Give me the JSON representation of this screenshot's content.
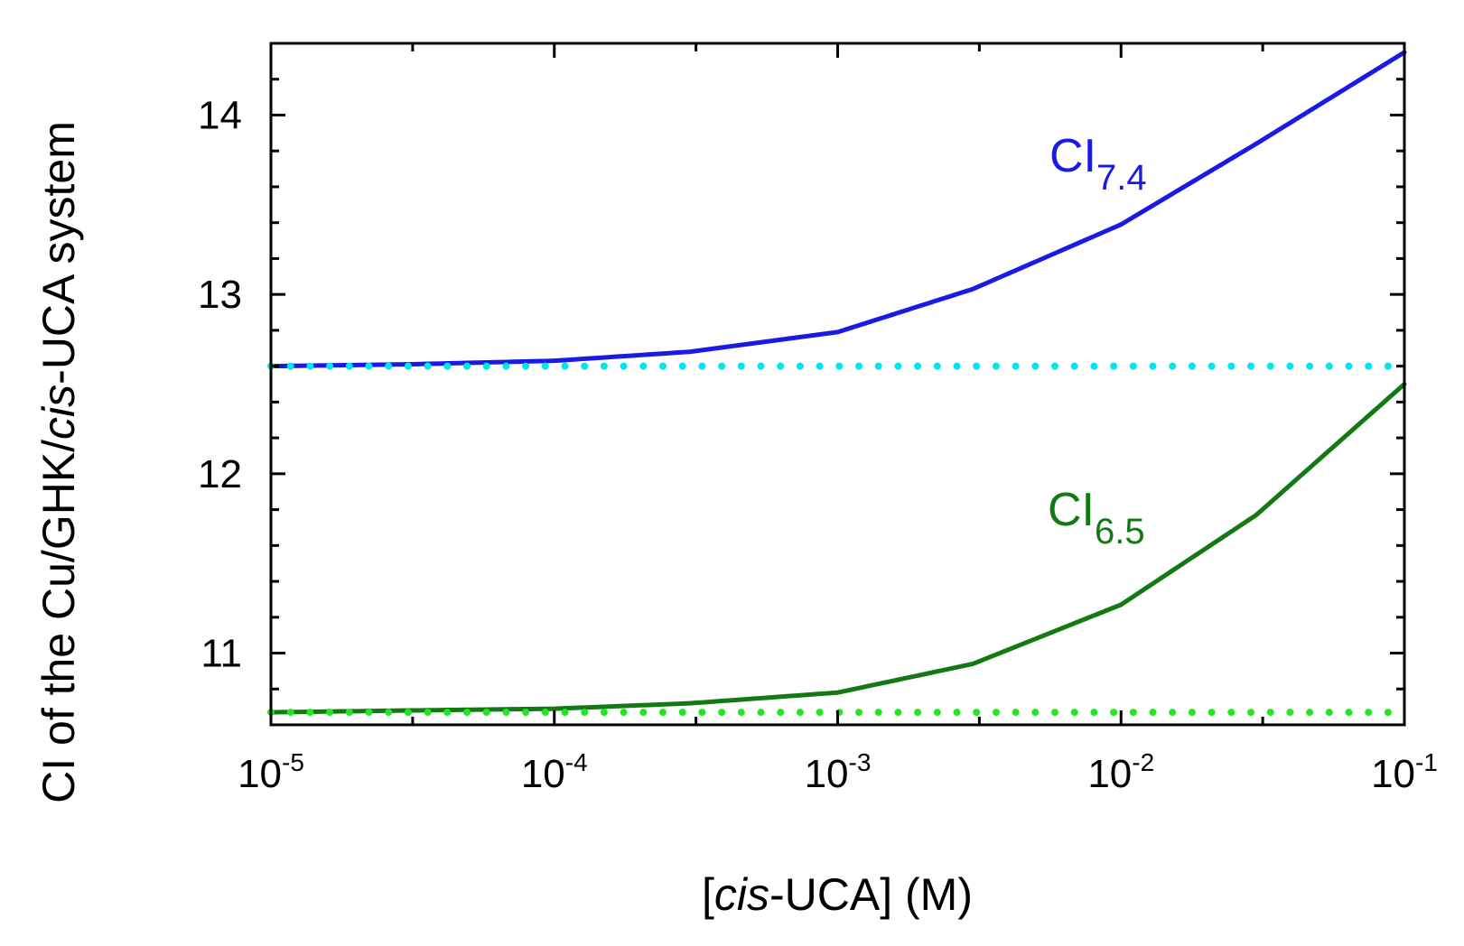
{
  "chart_data": {
    "type": "line",
    "title": "",
    "xlabel": {
      "prefix": "[",
      "italic": "cis",
      "suffix": "-UCA] (M)"
    },
    "ylabel": {
      "prefix": "CI of the Cu/GHK/",
      "italic": "cis",
      "suffix": "-UCA system"
    },
    "xscale": "log",
    "xlim": [
      1e-05,
      0.1
    ],
    "ylim": [
      10.6,
      14.4
    ],
    "x_ticks": [
      {
        "value": 1e-05,
        "base": "10",
        "exp": "-5"
      },
      {
        "value": 0.0001,
        "base": "10",
        "exp": "-4"
      },
      {
        "value": 0.001,
        "base": "10",
        "exp": "-3"
      },
      {
        "value": 0.01,
        "base": "10",
        "exp": "-2"
      },
      {
        "value": 0.1,
        "base": "10",
        "exp": "-1"
      }
    ],
    "y_ticks": [
      {
        "value": 11,
        "label": "11"
      },
      {
        "value": 12,
        "label": "12"
      },
      {
        "value": 13,
        "label": "13"
      },
      {
        "value": 14,
        "label": "14"
      }
    ],
    "y_minor_step": 0.2,
    "series": [
      {
        "name": "CI7.4",
        "label_main": "CI",
        "label_sub": "7.4",
        "color": "#1a1ae6",
        "style": "solid",
        "x": [
          1e-05,
          3e-05,
          0.0001,
          0.0003,
          0.001,
          0.003,
          0.01,
          0.03,
          0.1
        ],
        "values": [
          12.6,
          12.61,
          12.63,
          12.68,
          12.79,
          13.03,
          13.39,
          13.84,
          14.35
        ]
      },
      {
        "name": "CI7.4 baseline",
        "color": "#00e5f0",
        "style": "dotted",
        "x": [
          1e-05,
          0.1
        ],
        "values": [
          12.6,
          12.6
        ]
      },
      {
        "name": "CI6.5",
        "label_main": "CI",
        "label_sub": "6.5",
        "color": "#137a13",
        "style": "solid",
        "x": [
          1e-05,
          3e-05,
          0.0001,
          0.0003,
          0.001,
          0.003,
          0.01,
          0.03,
          0.1
        ],
        "values": [
          10.67,
          10.68,
          10.69,
          10.72,
          10.78,
          10.94,
          11.27,
          11.77,
          12.5
        ]
      },
      {
        "name": "CI6.5 baseline",
        "color": "#22e622",
        "style": "dotted",
        "x": [
          1e-05,
          0.1
        ],
        "values": [
          10.67,
          10.67
        ]
      }
    ]
  }
}
